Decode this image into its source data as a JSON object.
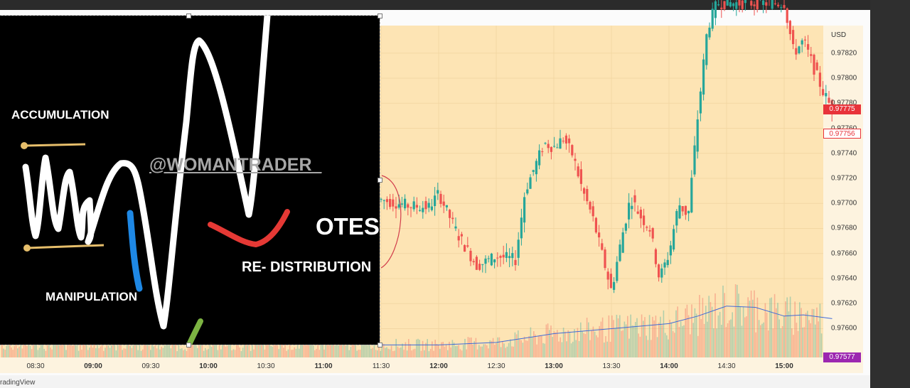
{
  "footer": {
    "brand": "radingView"
  },
  "annotations": {
    "accumulation": "ACCUMULATION",
    "manipulation": "MANIPULATION",
    "watermark": "@WOMANTRADER_",
    "otes": "OTES",
    "redistribution": "RE- DISTRIBUTION"
  },
  "chart_data": {
    "type": "candlestick",
    "title": "",
    "currency": "USD",
    "x_ticks": [
      "08:30",
      "09:00",
      "09:30",
      "10:00",
      "10:30",
      "11:00",
      "11:30",
      "12:00",
      "12:30",
      "13:00",
      "13:30",
      "14:00",
      "14:30",
      "15:00"
    ],
    "bold_ticks": [
      "09:00",
      "10:00",
      "11:00",
      "12:00",
      "13:00",
      "14:00",
      "15:00"
    ],
    "y_ticks": [
      0.9782,
      0.978,
      0.9778,
      0.9776,
      0.9774,
      0.9772,
      0.977,
      0.9768,
      0.9766,
      0.9764,
      0.9762,
      0.976
    ],
    "y_tick_labels": [
      "0.97820",
      "0.97800",
      "0.97780",
      "0.97760",
      "0.97740",
      "0.97720",
      "0.97700",
      "0.97680",
      "0.97660",
      "0.97640",
      "0.97620",
      "0.97600"
    ],
    "ylim": [
      0.97577,
      0.97842
    ],
    "price_tags": [
      {
        "label": "0.97775",
        "value": 0.97775,
        "style": "solid",
        "color": "#e8333a"
      },
      {
        "label": "0.97756",
        "value": 0.97756,
        "style": "outline",
        "color": "#e8333a"
      },
      {
        "label": "0.97577",
        "value": 0.97577,
        "style": "solid",
        "color": "#9c27b0"
      }
    ],
    "path": [
      [
        "11:30",
        0.97703
      ],
      [
        "11:45",
        0.97698
      ],
      [
        "11:55",
        0.97697
      ],
      [
        "12:00",
        0.97708
      ],
      [
        "12:10",
        0.97675
      ],
      [
        "12:20",
        0.9765
      ],
      [
        "12:30",
        0.97658
      ],
      [
        "12:40",
        0.97655
      ],
      [
        "12:45",
        0.9771
      ],
      [
        "12:55",
        0.97748
      ],
      [
        "13:00",
        0.97745
      ],
      [
        "13:05",
        0.97752
      ],
      [
        "13:10",
        0.97738
      ],
      [
        "13:15",
        0.9771
      ],
      [
        "13:20",
        0.9769
      ],
      [
        "13:25",
        0.9766
      ],
      [
        "13:30",
        0.9763
      ],
      [
        "13:35",
        0.9767
      ],
      [
        "13:40",
        0.97705
      ],
      [
        "13:45",
        0.9769
      ],
      [
        "13:50",
        0.9768
      ],
      [
        "13:55",
        0.9764
      ],
      [
        "14:00",
        0.9766
      ],
      [
        "14:05",
        0.977
      ],
      [
        "14:10",
        0.9769
      ],
      [
        "14:15",
        0.9777
      ],
      [
        "14:20",
        0.9784
      ],
      [
        "14:25",
        0.9786
      ],
      [
        "15:00",
        0.9786
      ],
      [
        "15:05",
        0.9782
      ],
      [
        "15:10",
        0.9783
      ],
      [
        "15:15",
        0.9781
      ],
      [
        "15:20",
        0.9779
      ],
      [
        "15:25",
        0.97775
      ]
    ],
    "volume_line": [
      [
        "11:30",
        0.97587
      ],
      [
        "12:00",
        0.97587
      ],
      [
        "12:30",
        0.97589
      ],
      [
        "13:00",
        0.97596
      ],
      [
        "13:30",
        0.976
      ],
      [
        "14:00",
        0.97604
      ],
      [
        "14:15",
        0.9761
      ],
      [
        "14:30",
        0.97618
      ],
      [
        "14:45",
        0.97617
      ],
      [
        "15:00",
        0.9761
      ],
      [
        "15:10",
        0.97611
      ],
      [
        "15:25",
        0.97608
      ]
    ]
  }
}
